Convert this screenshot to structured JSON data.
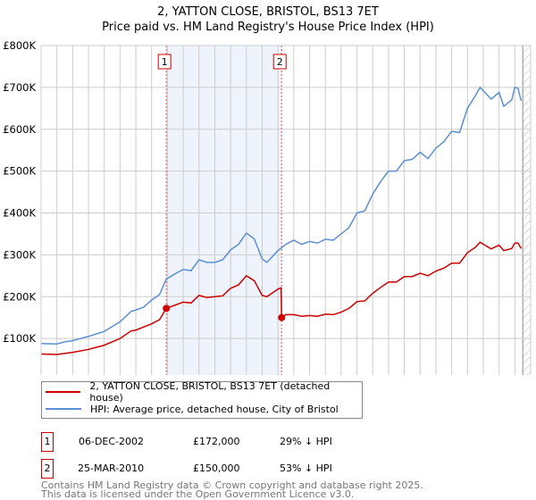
{
  "chart_data": {
    "type": "line",
    "title": "2, YATTON CLOSE, BRISTOL, BS13 7ET",
    "subtitle": "Price paid vs. HM Land Registry's House Price Index (HPI)",
    "xlim": [
      1995,
      2026
    ],
    "ylim": [
      0,
      800000
    ],
    "yticks": [
      {
        "v": 0,
        "label": "£0"
      },
      {
        "v": 100000,
        "label": "£100K"
      },
      {
        "v": 200000,
        "label": "£200K"
      },
      {
        "v": 300000,
        "label": "£300K"
      },
      {
        "v": 400000,
        "label": "£400K"
      },
      {
        "v": 500000,
        "label": "£500K"
      },
      {
        "v": 600000,
        "label": "£600K"
      },
      {
        "v": 700000,
        "label": "£700K"
      },
      {
        "v": 800000,
        "label": "£800K"
      }
    ],
    "xticks": [
      "1995",
      "1996",
      "1997",
      "1998",
      "1999",
      "2000",
      "2001",
      "2002",
      "2003",
      "2004",
      "2005",
      "2006",
      "2007",
      "2008",
      "2009",
      "2010",
      "2011",
      "2012",
      "2013",
      "2014",
      "2015",
      "2016",
      "2017",
      "2018",
      "2019",
      "2020",
      "2021",
      "2022",
      "2023",
      "2024",
      "2025",
      "2026"
    ],
    "grid": true,
    "shaded_period": [
      2002.93,
      2010.23
    ],
    "forecast_hatch_from": 2025.5,
    "series": [
      {
        "name": "2, YATTON CLOSE, BRISTOL, BS13 7ET (detached house)",
        "color": "#cc0000",
        "points": [
          [
            1995,
            63
          ],
          [
            1996,
            62
          ],
          [
            1997,
            67
          ],
          [
            1998,
            74
          ],
          [
            1999,
            84
          ],
          [
            2000,
            100
          ],
          [
            2000.7,
            118
          ],
          [
            2001,
            120
          ],
          [
            2002,
            135
          ],
          [
            2002.5,
            145
          ],
          [
            2002.93,
            172
          ],
          [
            2003.5,
            180
          ],
          [
            2004,
            187
          ],
          [
            2004.5,
            185
          ],
          [
            2005,
            203
          ],
          [
            2005.5,
            198
          ],
          [
            2006,
            200
          ],
          [
            2006.5,
            202
          ],
          [
            2007,
            220
          ],
          [
            2007.5,
            228
          ],
          [
            2008,
            250
          ],
          [
            2008.5,
            238
          ],
          [
            2009,
            203
          ],
          [
            2009.3,
            200
          ],
          [
            2010,
            218
          ],
          [
            2010.2,
            221
          ],
          [
            2010.23,
            150
          ],
          [
            2010.5,
            157
          ],
          [
            2011,
            157
          ],
          [
            2011.5,
            153
          ],
          [
            2012,
            155
          ],
          [
            2012.5,
            153
          ],
          [
            2013,
            158
          ],
          [
            2013.5,
            157
          ],
          [
            2014,
            163
          ],
          [
            2014.5,
            172
          ],
          [
            2015,
            188
          ],
          [
            2015.5,
            190
          ],
          [
            2016,
            208
          ],
          [
            2016.5,
            222
          ],
          [
            2017,
            235
          ],
          [
            2017.5,
            235
          ],
          [
            2018,
            248
          ],
          [
            2018.5,
            248
          ],
          [
            2019,
            256
          ],
          [
            2019.5,
            250
          ],
          [
            2020,
            261
          ],
          [
            2020.5,
            268
          ],
          [
            2021,
            280
          ],
          [
            2021.5,
            280
          ],
          [
            2022,
            305
          ],
          [
            2022.5,
            318
          ],
          [
            2022.8,
            330
          ],
          [
            2023.5,
            314
          ],
          [
            2024,
            323
          ],
          [
            2024.3,
            310
          ],
          [
            2024.8,
            315
          ],
          [
            2025,
            328
          ],
          [
            2025.2,
            328
          ],
          [
            2025.4,
            315
          ]
        ]
      },
      {
        "name": "HPI: Average price, detached house, City of Bristol",
        "color": "#5b8fd1",
        "points": [
          [
            1995,
            88
          ],
          [
            1996,
            87
          ],
          [
            1996.5,
            92
          ],
          [
            1997,
            95
          ],
          [
            1998,
            105
          ],
          [
            1999,
            117
          ],
          [
            2000,
            140
          ],
          [
            2000.7,
            165
          ],
          [
            2001,
            168
          ],
          [
            2001.5,
            175
          ],
          [
            2002,
            192
          ],
          [
            2002.5,
            205
          ],
          [
            2002.93,
            242
          ],
          [
            2003.5,
            255
          ],
          [
            2004,
            265
          ],
          [
            2004.5,
            262
          ],
          [
            2005,
            288
          ],
          [
            2005.5,
            282
          ],
          [
            2006,
            282
          ],
          [
            2006.5,
            288
          ],
          [
            2007,
            312
          ],
          [
            2007.5,
            325
          ],
          [
            2008,
            352
          ],
          [
            2008.5,
            338
          ],
          [
            2009,
            290
          ],
          [
            2009.3,
            282
          ],
          [
            2010,
            310
          ],
          [
            2010.5,
            325
          ],
          [
            2011,
            335
          ],
          [
            2011.5,
            325
          ],
          [
            2012,
            332
          ],
          [
            2012.5,
            328
          ],
          [
            2013,
            337
          ],
          [
            2013.5,
            335
          ],
          [
            2014,
            350
          ],
          [
            2014.5,
            365
          ],
          [
            2015,
            400
          ],
          [
            2015.5,
            405
          ],
          [
            2016,
            445
          ],
          [
            2016.5,
            475
          ],
          [
            2017,
            500
          ],
          [
            2017.5,
            500
          ],
          [
            2018,
            525
          ],
          [
            2018.5,
            528
          ],
          [
            2019,
            545
          ],
          [
            2019.5,
            530
          ],
          [
            2020,
            555
          ],
          [
            2020.5,
            570
          ],
          [
            2021,
            595
          ],
          [
            2021.5,
            592
          ],
          [
            2022,
            650
          ],
          [
            2022.5,
            680
          ],
          [
            2022.8,
            700
          ],
          [
            2023.5,
            672
          ],
          [
            2024,
            688
          ],
          [
            2024.3,
            655
          ],
          [
            2024.8,
            670
          ],
          [
            2025,
            700
          ],
          [
            2025.2,
            698
          ],
          [
            2025.4,
            668
          ]
        ]
      }
    ],
    "point_units": "thousand GBP",
    "sales": [
      {
        "id": "1",
        "x": 2002.93,
        "y": 172000,
        "date": "06-DEC-2002",
        "price": "£172,000",
        "hpi": "29% ↓ HPI"
      },
      {
        "id": "2",
        "x": 2010.23,
        "y": 150000,
        "date": "25-MAR-2010",
        "price": "£150,000",
        "hpi": "53% ↓ HPI"
      }
    ]
  },
  "footer": {
    "line1": "Contains HM Land Registry data © Crown copyright and database right 2025.",
    "line2": "This data is licensed under the Open Government Licence v3.0."
  }
}
